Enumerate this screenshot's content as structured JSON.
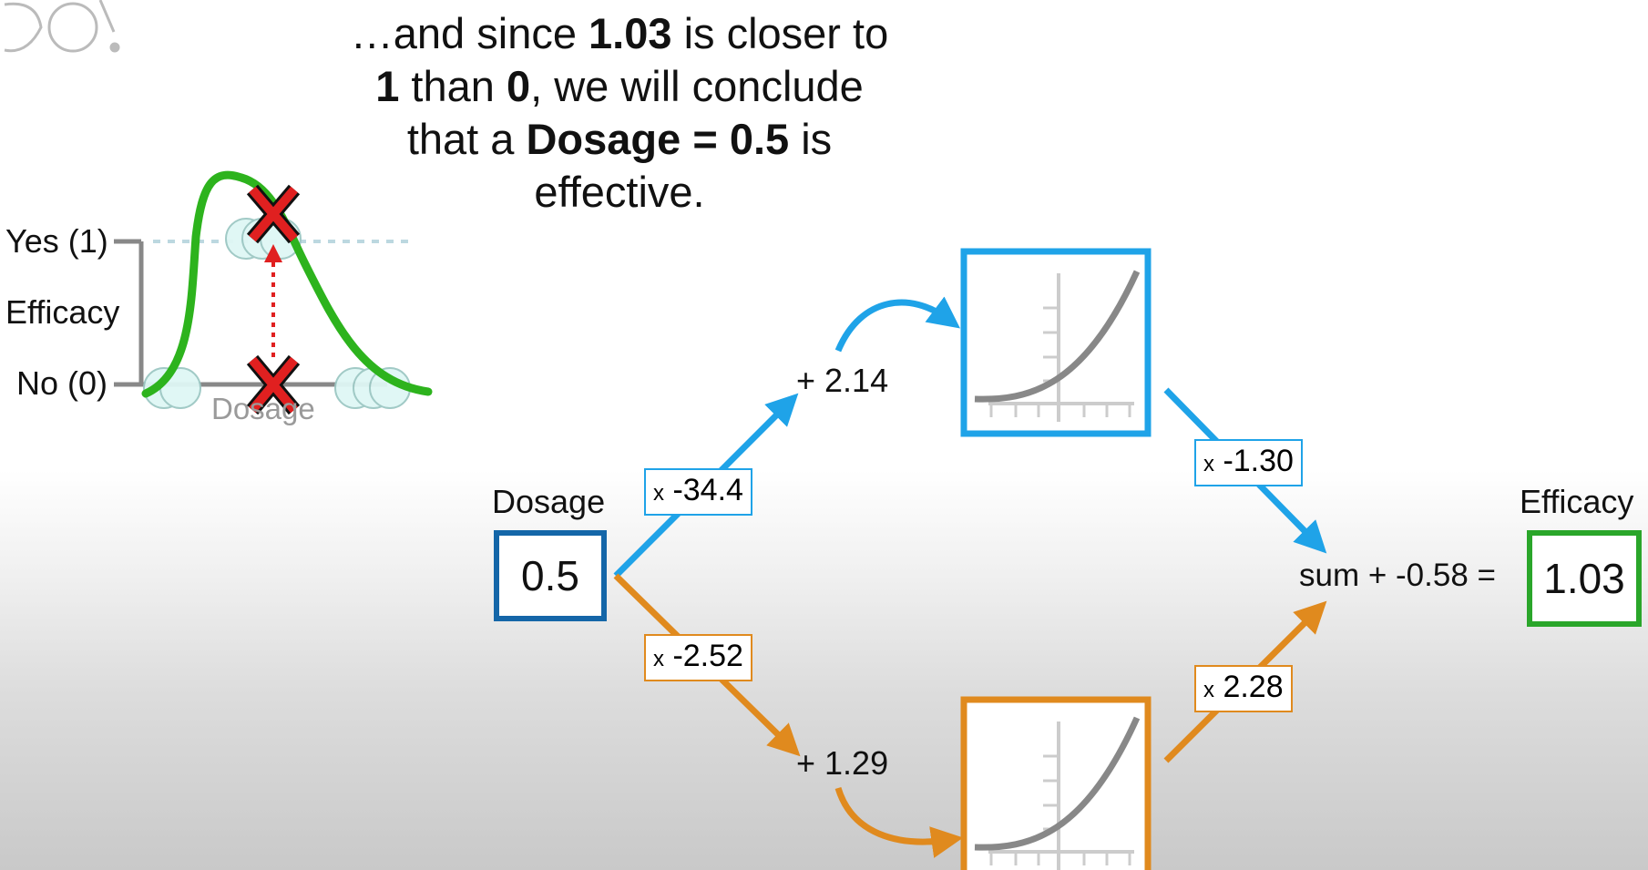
{
  "caption": {
    "l1": [
      "…and since ",
      "1.03",
      " is closer to"
    ],
    "l2": [
      "1",
      " than ",
      "0",
      ", we will conclude"
    ],
    "l3": [
      "that a ",
      "Dosage = 0.5",
      " is"
    ],
    "l4": [
      "effective."
    ]
  },
  "inset": {
    "yes_label": "Yes (1)",
    "efficacy_label": "Efficacy",
    "no_label": "No (0)",
    "dosage_label": "Dosage",
    "curve_color": "#2db31d",
    "marker_color": "#e02020"
  },
  "network": {
    "input_label": "Dosage",
    "input_value": "0.5",
    "output_label": "Efficacy",
    "output_value": "1.03",
    "top_weight": "-34.4",
    "top_bias": "+ 2.14",
    "top_out_weight": "-1.30",
    "bottom_weight": "-2.52",
    "bottom_bias": "+ 1.29",
    "bottom_out_weight": "2.28",
    "x_symbol": "x",
    "sum_text": "sum + -0.58 =",
    "colors": {
      "blue": "#1fa3e8",
      "orange": "#e08a1e",
      "input_box": "#1466a8",
      "output_box": "#2aa62a"
    }
  }
}
